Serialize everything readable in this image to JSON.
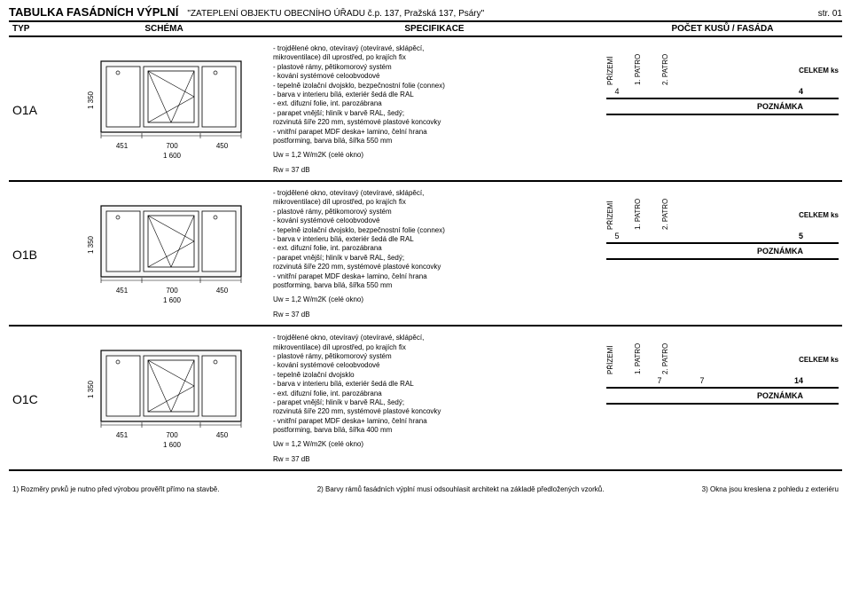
{
  "title": "TABULKA FASÁDNÍCH VÝPLNÍ",
  "subtitle": "\"ZATEPLENÍ OBJEKTU OBECNÍHO ÚŘADU č.p. 137, Pražská 137, Psáry\"",
  "page_label": "str. 01",
  "headers": {
    "typ": "TYP",
    "schema": "SCHÉMA",
    "spec": "SPECIFIKACE",
    "count": "POČET KUSŮ / FASÁDA"
  },
  "floor_labels": [
    "PŘÍZEMÍ",
    "1. PATRO",
    "2. PATRO"
  ],
  "celkem_label": "CELKEM ks",
  "poznamka_label": "POZNÁMKA",
  "uw_label": "Uw = 1,2 W/m2K (celé okno)",
  "rw_label": "Rw = 37 dB",
  "dims": {
    "h": "1 350",
    "w1": "451",
    "w2": "700",
    "w3": "450",
    "wtotal": "1 600"
  },
  "rows": [
    {
      "id": "O1A",
      "spec": [
        "- trojdělené okno, otevíravý (otevíravé, sklápěcí,",
        "mikroventilace) díl uprostřed, po krajích fix",
        "- plastové rámy, pětikomorový systém",
        "- kování systémové celoobvodové",
        "- tepelně izolační dvojsklo, bezpečnostní folie (connex)",
        "- barva v interieru bílá, exteriér šedá dle RAL",
        "- ext. difuzní folie, int. parozábrana",
        "- parapet vnější; hliník v barvě RAL, šedý;",
        "rozvinutá šíře 220 mm, systémové plastové koncovky",
        "- vnitřní parapet MDF deska+ lamino, čelní hrana",
        "postforming, barva bílá, šířka 550 mm"
      ],
      "counts": {
        "prizemi": "4",
        "patro1": "",
        "patro2": "",
        "total": "4"
      }
    },
    {
      "id": "O1B",
      "spec": [
        "- trojdělené okno, otevíravý (otevíravé, sklápěcí,",
        "mikroventilace) díl uprostřed, po krajích fix",
        "- plastové rámy, pětikomorový systém",
        "- kování systémové celoobvodové",
        "- tepelně izolační dvojsklo, bezpečnostní folie (connex)",
        "- barva v interieru bílá, exteriér šedá dle RAL",
        "- ext. difuzní folie, int. parozábrana",
        "- parapet vnější; hliník v barvě RAL, šedý;",
        "rozvinutá šíře 220 mm, systémové plastové koncovky",
        "- vnitřní parapet MDF deska+ lamino, čelní hrana",
        "postforming, barva bílá, šířka 550 mm"
      ],
      "counts": {
        "prizemi": "5",
        "patro1": "",
        "patro2": "",
        "total": "5"
      }
    },
    {
      "id": "O1C",
      "spec": [
        "- trojdělené okno, otevíravý (otevíravé, sklápěcí,",
        "mikroventilace) díl uprostřed, po krajích fix",
        "- plastové rámy, pětikomorový systém",
        "- kování systémové celoobvodové",
        "- tepelně izolační dvojsklo",
        "- barva v interieru bílá, exteriér šedá dle RAL",
        "- ext. difuzní folie, int. parozábrana",
        "- parapet vnější; hliník v barvě RAL, šedý;",
        "rozvinutá šíře 220 mm, systémové plastové koncovky",
        "- vnitřní parapet MDF deska+ lamino, čelní hrana",
        "postforming, barva bílá, šířka 400 mm"
      ],
      "counts": {
        "prizemi": "",
        "patro1": "7",
        "patro2": "7",
        "total": "14"
      }
    }
  ],
  "footer": {
    "n1": "1) Rozměry prvků je nutno před výrobou prověřit přímo na stavbě.",
    "n2": "2) Barvy rámů fasádních výplní musí odsouhlasit architekt na základě předložených vzorků.",
    "n3": "3) Okna jsou kreslena z pohledu z exteriéru"
  },
  "colors": {
    "fill": "#f7f7f7",
    "stroke": "#000000"
  }
}
